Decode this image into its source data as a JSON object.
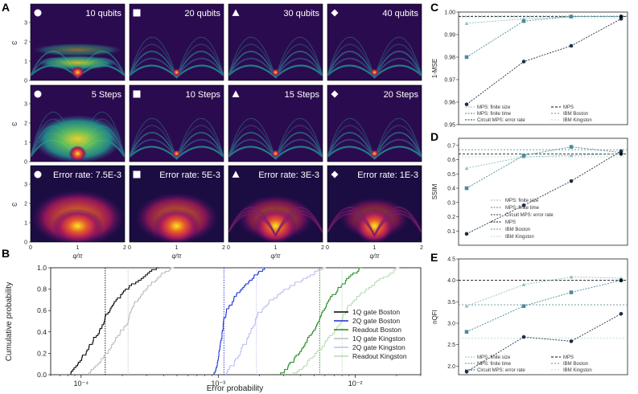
{
  "panels": {
    "A": "A",
    "B": "B",
    "C": "C",
    "D": "D",
    "E": "E"
  },
  "heatmaps": {
    "rows": [
      [
        {
          "marker": "circle",
          "label": "10 qubits"
        },
        {
          "marker": "square",
          "label": "20 qubits"
        },
        {
          "marker": "triangle",
          "label": "30 qubits"
        },
        {
          "marker": "diamond",
          "label": "40 qubits"
        }
      ],
      [
        {
          "marker": "circle",
          "label": "5 Steps"
        },
        {
          "marker": "square",
          "label": "10 Steps"
        },
        {
          "marker": "triangle",
          "label": "15 Steps"
        },
        {
          "marker": "diamond",
          "label": "20 Steps"
        }
      ],
      [
        {
          "marker": "circle",
          "label": "Error rate: 7.5E-3"
        },
        {
          "marker": "square",
          "label": "Error rate: 5E-3"
        },
        {
          "marker": "triangle",
          "label": "Error rate: 3E-3"
        },
        {
          "marker": "diamond",
          "label": "Error rate: 1E-3"
        }
      ]
    ],
    "ylabel": "ω",
    "yticks": [
      "0",
      "1",
      "2",
      "3"
    ],
    "xlabel": "q/π",
    "xticks": [
      "0",
      "1",
      "2"
    ]
  },
  "chart_data": [
    {
      "panel": "B",
      "type": "line",
      "title": "",
      "xlabel": "Error probability",
      "ylabel": "Cumulative probability",
      "xscale": "log",
      "xlim": [
        6e-05,
        0.03
      ],
      "ylim": [
        0,
        1
      ],
      "xticks": [
        "10⁻⁴",
        "10⁻³",
        "10⁻²"
      ],
      "yticks": [
        "0.0",
        "0.2",
        "0.4",
        "0.6",
        "0.8",
        "1.0"
      ],
      "legend_position": "right",
      "series": [
        {
          "name": "1Q gate Boston",
          "color": "#000000",
          "median": 0.00015,
          "range": [
            8e-05,
            0.00035
          ]
        },
        {
          "name": "2Q gate Boston",
          "color": "#1a2fd6",
          "median": 0.0011,
          "range": [
            0.00095,
            0.0022
          ]
        },
        {
          "name": "Readout Boston",
          "color": "#1f8a1f",
          "median": 0.0055,
          "range": [
            0.0028,
            0.011
          ]
        },
        {
          "name": "1Q gate Kingston",
          "color": "#bbbbbb",
          "median": 0.00022,
          "range": [
            0.00011,
            0.00045
          ]
        },
        {
          "name": "2Q gate Kingston",
          "color": "#b9bdf0",
          "median": 0.0019,
          "range": [
            0.0011,
            0.006
          ]
        },
        {
          "name": "Readout Kingston",
          "color": "#b5dcb0",
          "median": 0.008,
          "range": [
            0.0035,
            0.021
          ]
        }
      ]
    },
    {
      "panel": "C",
      "type": "line",
      "ylabel": "1-MSE",
      "ylim": [
        0.95,
        1.0
      ],
      "yticks": [
        "0.95",
        "0.96",
        "0.97",
        "0.98",
        "0.99",
        "1.00"
      ],
      "series": [
        {
          "name": "MPS: finite size",
          "values": [
            0.995,
            0.997,
            0.998,
            0.998
          ]
        },
        {
          "name": "MPS: finite time",
          "values": [
            0.98,
            0.996,
            0.998,
            0.998
          ]
        },
        {
          "name": "Circuit MPS: error rate",
          "values": [
            0.959,
            0.978,
            0.985,
            0.997
          ]
        }
      ],
      "refs": [
        {
          "name": "MPS",
          "value": 0.998
        },
        {
          "name": "IBM Boston",
          "value": 0.9982
        },
        {
          "name": "IBM Kingston",
          "value": 0.9975
        }
      ]
    },
    {
      "panel": "D",
      "type": "line",
      "ylabel": "SSIM",
      "ylim": [
        0.0,
        0.75
      ],
      "yticks": [
        "0.1",
        "0.2",
        "0.3",
        "0.4",
        "0.5",
        "0.6",
        "0.7"
      ],
      "series": [
        {
          "name": "MPS: finite size",
          "values": [
            0.54,
            0.62,
            0.63,
            0.64
          ]
        },
        {
          "name": "MPS: finite time",
          "values": [
            0.4,
            0.63,
            0.69,
            0.65
          ]
        },
        {
          "name": "Circuit MPS: error rate",
          "values": [
            0.08,
            0.28,
            0.45,
            0.66
          ]
        }
      ],
      "refs": [
        {
          "name": "MPS",
          "value": 0.64
        },
        {
          "name": "IBM Boston",
          "value": 0.67
        },
        {
          "name": "IBM Kingston",
          "value": 0.62
        }
      ]
    },
    {
      "panel": "E",
      "type": "line",
      "ylabel": "nQFI",
      "ylim": [
        1.8,
        4.5
      ],
      "yticks": [
        "2.0",
        "2.5",
        "3.0",
        "3.5",
        "4.0",
        "4.5"
      ],
      "series": [
        {
          "name": "MPS: finite size",
          "values": [
            3.4,
            3.9,
            4.08,
            4.05
          ]
        },
        {
          "name": "MPS: finite time",
          "values": [
            2.8,
            3.4,
            3.72,
            4.0
          ]
        },
        {
          "name": "Circuit MPS: error rate",
          "values": [
            1.87,
            2.68,
            2.58,
            3.22
          ]
        }
      ],
      "refs": [
        {
          "name": "MPS",
          "value": 4.0
        },
        {
          "name": "IBM Boston",
          "value": 3.43
        },
        {
          "name": "IBM Kingston",
          "value": 2.65
        }
      ]
    }
  ],
  "legend_small": {
    "left": [
      "MPS: finite size",
      "MPS: finite time",
      "Circuit MPS: error rate"
    ],
    "right": [
      "MPS",
      "IBM Boston",
      "IBM Kingston"
    ]
  },
  "colors": {
    "finite_size": "#8fc2bd",
    "finite_time": "#4d8a9a",
    "error_rate": "#1d2f44",
    "ref_mps": "#000000",
    "ref_boston": "#5f8f93",
    "ref_kingston": "#b6d8c8"
  }
}
